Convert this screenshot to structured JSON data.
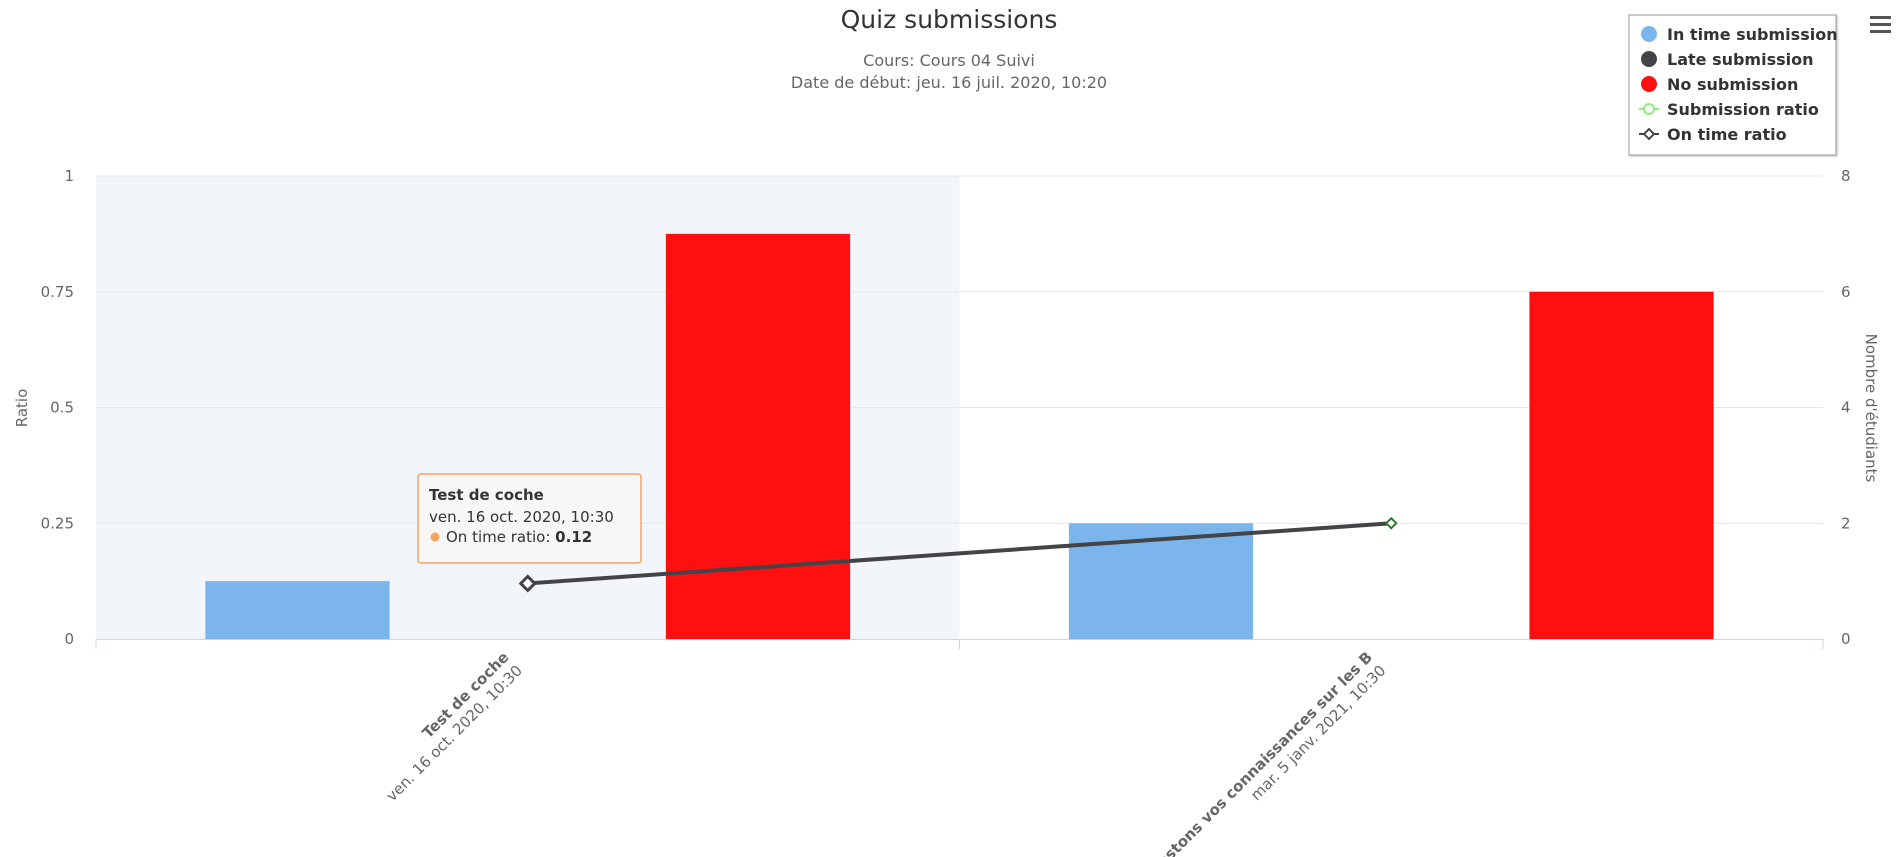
{
  "chart_data": {
    "type": "bar",
    "title": "Quiz submissions",
    "subtitle_lines": [
      "Cours: Cours 04 Suivi",
      "Date de début: jeu. 16 juil. 2020, 10:20"
    ],
    "categories": [
      {
        "name": "Test de coche",
        "date": "ven. 16 oct. 2020, 10:30"
      },
      {
        "name": "Testons vos connaissances sur les B",
        "date": "mar. 5 janv. 2021, 10:30"
      }
    ],
    "y_left": {
      "label": "Ratio",
      "range": [
        0,
        1
      ],
      "ticks": [
        "0",
        "0.25",
        "0.5",
        "0.75",
        "1"
      ]
    },
    "y_right": {
      "label": "Nombre d'étudiants",
      "range": [
        0,
        8
      ],
      "ticks": [
        "0",
        "2",
        "4",
        "6",
        "8"
      ]
    },
    "series": [
      {
        "name": "In time submission",
        "type": "column",
        "axis": "right",
        "color": "#7cb5ec",
        "values": [
          1,
          2
        ]
      },
      {
        "name": "Late submission",
        "type": "column",
        "axis": "right",
        "color": "#434348",
        "values": [
          0,
          0
        ]
      },
      {
        "name": "No submission",
        "type": "column",
        "axis": "right",
        "color": "#ff1010",
        "values": [
          7,
          6
        ]
      },
      {
        "name": "Submission ratio",
        "type": "line",
        "axis": "left",
        "color": "#90ed7d",
        "values": [
          null,
          null
        ]
      },
      {
        "name": "On time ratio",
        "type": "line",
        "axis": "left",
        "color": "#434348",
        "values": [
          0.12,
          0.25
        ]
      }
    ],
    "hovered_category": 0,
    "legend_position": "top-right",
    "grid": true
  },
  "tooltip": {
    "title": "Test de coche",
    "date": "ven. 16 oct. 2020, 10:30",
    "series_label": "On time ratio: ",
    "value": "0.12",
    "border_color": "#f7a35c"
  },
  "menu": {
    "icon": "hamburger-menu-icon"
  }
}
